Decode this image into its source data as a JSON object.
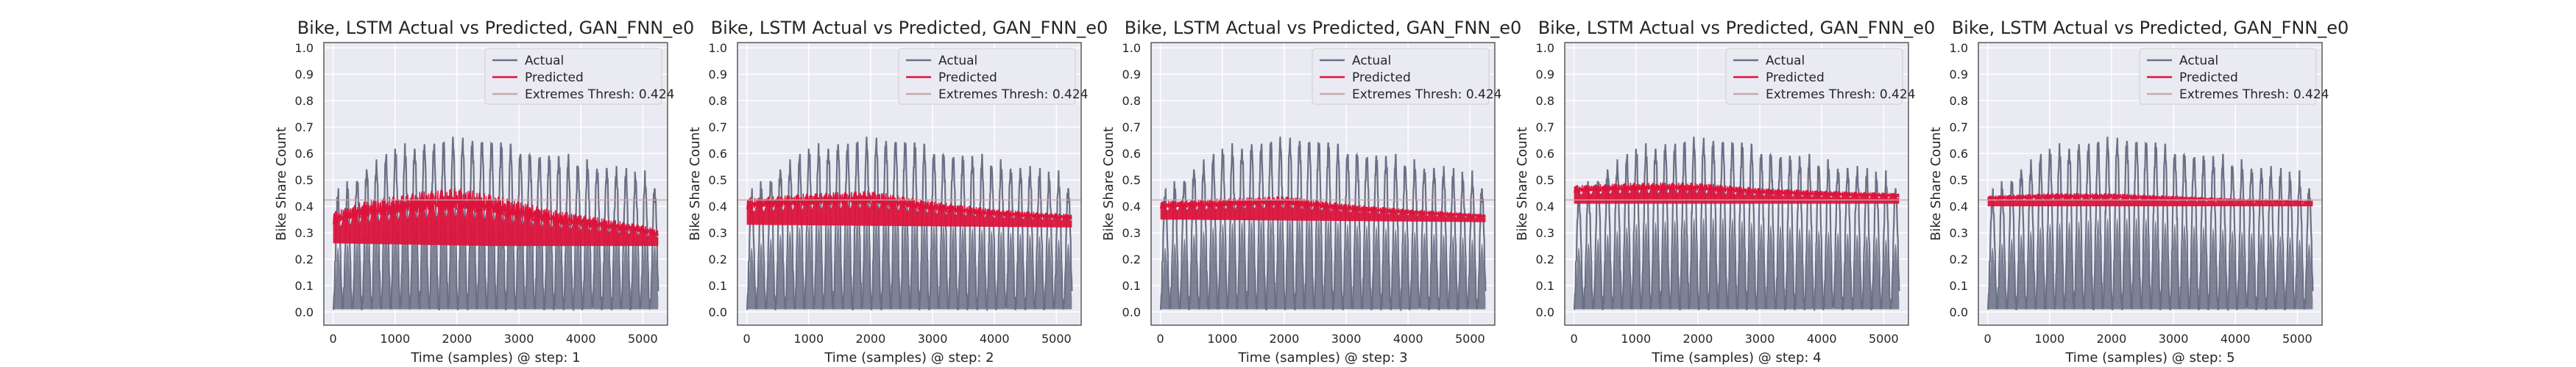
{
  "chart_data": [
    {
      "type": "line",
      "title": "Bike, LSTM Actual vs Predicted, GAN_FNN_e0",
      "xlabel": "Time (samples) @ step: 1",
      "ylabel": "Bike Share Count",
      "xlim": [
        -150,
        5400
      ],
      "ylim": [
        -0.05,
        1.02
      ],
      "xticks": [
        0,
        1000,
        2000,
        3000,
        4000,
        5000
      ],
      "yticks": [
        0.0,
        0.1,
        0.2,
        0.3,
        0.4,
        0.5,
        0.6,
        0.7,
        0.8,
        0.9,
        1.0
      ],
      "grid": true,
      "legend": "top-right",
      "series": [
        {
          "name": "Actual",
          "color": "#6b7085",
          "kind": "band",
          "x_range": [
            0,
            5250
          ],
          "low": 0.01,
          "peak_env": [
            [
              0,
              0.42
            ],
            [
              500,
              0.52
            ],
            [
              1000,
              0.6
            ],
            [
              1500,
              0.62
            ],
            [
              2000,
              0.64
            ],
            [
              2500,
              0.64
            ],
            [
              3000,
              0.6
            ],
            [
              3500,
              0.58
            ],
            [
              4000,
              0.55
            ],
            [
              4500,
              0.53
            ],
            [
              5000,
              0.5
            ],
            [
              5250,
              0.45
            ]
          ]
        },
        {
          "name": "Predicted",
          "color": "#dc143c",
          "kind": "band",
          "x_range": [
            0,
            5250
          ],
          "low_env": [
            [
              0,
              0.26
            ],
            [
              2500,
              0.25
            ],
            [
              5250,
              0.25
            ]
          ],
          "high_env": [
            [
              0,
              0.38
            ],
            [
              500,
              0.42
            ],
            [
              1000,
              0.44
            ],
            [
              1500,
              0.46
            ],
            [
              2000,
              0.47
            ],
            [
              2500,
              0.45
            ],
            [
              3000,
              0.42
            ],
            [
              3500,
              0.39
            ],
            [
              4000,
              0.37
            ],
            [
              4500,
              0.35
            ],
            [
              5000,
              0.33
            ],
            [
              5250,
              0.31
            ]
          ]
        },
        {
          "name": "Extremes Thresh: 0.424",
          "color": "#c7a8a8",
          "kind": "hline",
          "y": 0.424
        }
      ]
    },
    {
      "type": "line",
      "title": "Bike, LSTM Actual vs Predicted, GAN_FNN_e0",
      "xlabel": "Time (samples) @ step: 2",
      "ylabel": "Bike Share Count",
      "xlim": [
        -150,
        5400
      ],
      "ylim": [
        -0.05,
        1.02
      ],
      "xticks": [
        0,
        1000,
        2000,
        3000,
        4000,
        5000
      ],
      "yticks": [
        0.0,
        0.1,
        0.2,
        0.3,
        0.4,
        0.5,
        0.6,
        0.7,
        0.8,
        0.9,
        1.0
      ],
      "grid": true,
      "legend": "top-right",
      "series": [
        {
          "name": "Actual",
          "color": "#6b7085",
          "kind": "band",
          "x_range": [
            0,
            5250
          ],
          "low": 0.01,
          "peak_env": [
            [
              0,
              0.42
            ],
            [
              500,
              0.52
            ],
            [
              1000,
              0.6
            ],
            [
              1500,
              0.62
            ],
            [
              2000,
              0.64
            ],
            [
              2500,
              0.64
            ],
            [
              3000,
              0.6
            ],
            [
              3500,
              0.58
            ],
            [
              4000,
              0.55
            ],
            [
              4500,
              0.53
            ],
            [
              5000,
              0.5
            ],
            [
              5250,
              0.45
            ]
          ]
        },
        {
          "name": "Predicted",
          "color": "#dc143c",
          "kind": "band",
          "x_range": [
            0,
            5250
          ],
          "low_env": [
            [
              0,
              0.33
            ],
            [
              5250,
              0.32
            ]
          ],
          "high_env": [
            [
              0,
              0.43
            ],
            [
              1000,
              0.45
            ],
            [
              2000,
              0.46
            ],
            [
              3000,
              0.42
            ],
            [
              4000,
              0.39
            ],
            [
              5250,
              0.37
            ]
          ]
        },
        {
          "name": "Extremes Thresh: 0.424",
          "color": "#c7a8a8",
          "kind": "hline",
          "y": 0.424
        }
      ]
    },
    {
      "type": "line",
      "title": "Bike, LSTM Actual vs Predicted, GAN_FNN_e0",
      "xlabel": "Time (samples) @ step: 3",
      "ylabel": "Bike Share Count",
      "xlim": [
        -150,
        5400
      ],
      "ylim": [
        -0.05,
        1.02
      ],
      "xticks": [
        0,
        1000,
        2000,
        3000,
        4000,
        5000
      ],
      "yticks": [
        0.0,
        0.1,
        0.2,
        0.3,
        0.4,
        0.5,
        0.6,
        0.7,
        0.8,
        0.9,
        1.0
      ],
      "grid": true,
      "legend": "top-right",
      "series": [
        {
          "name": "Actual",
          "color": "#6b7085",
          "kind": "band",
          "x_range": [
            0,
            5250
          ],
          "low": 0.01,
          "peak_env": [
            [
              0,
              0.42
            ],
            [
              500,
              0.52
            ],
            [
              1000,
              0.6
            ],
            [
              1500,
              0.62
            ],
            [
              2000,
              0.64
            ],
            [
              2500,
              0.64
            ],
            [
              3000,
              0.6
            ],
            [
              3500,
              0.58
            ],
            [
              4000,
              0.55
            ],
            [
              4500,
              0.53
            ],
            [
              5000,
              0.5
            ],
            [
              5250,
              0.45
            ]
          ]
        },
        {
          "name": "Predicted",
          "color": "#dc143c",
          "kind": "band",
          "x_range": [
            0,
            5250
          ],
          "low_env": [
            [
              0,
              0.35
            ],
            [
              5250,
              0.34
            ]
          ],
          "high_env": [
            [
              0,
              0.42
            ],
            [
              1000,
              0.43
            ],
            [
              2000,
              0.44
            ],
            [
              3000,
              0.41
            ],
            [
              4000,
              0.39
            ],
            [
              5250,
              0.37
            ]
          ]
        },
        {
          "name": "Extremes Thresh: 0.424",
          "color": "#c7a8a8",
          "kind": "hline",
          "y": 0.424
        }
      ]
    },
    {
      "type": "line",
      "title": "Bike, LSTM Actual vs Predicted, GAN_FNN_e0",
      "xlabel": "Time (samples) @ step: 4",
      "ylabel": "Bike Share Count",
      "xlim": [
        -150,
        5400
      ],
      "ylim": [
        -0.05,
        1.02
      ],
      "xticks": [
        0,
        1000,
        2000,
        3000,
        4000,
        5000
      ],
      "yticks": [
        0.0,
        0.1,
        0.2,
        0.3,
        0.4,
        0.5,
        0.6,
        0.7,
        0.8,
        0.9,
        1.0
      ],
      "grid": true,
      "legend": "top-right",
      "series": [
        {
          "name": "Actual",
          "color": "#6b7085",
          "kind": "band",
          "x_range": [
            0,
            5250
          ],
          "low": 0.01,
          "peak_env": [
            [
              0,
              0.42
            ],
            [
              500,
              0.52
            ],
            [
              1000,
              0.6
            ],
            [
              1500,
              0.62
            ],
            [
              2000,
              0.64
            ],
            [
              2500,
              0.64
            ],
            [
              3000,
              0.6
            ],
            [
              3500,
              0.58
            ],
            [
              4000,
              0.55
            ],
            [
              4500,
              0.53
            ],
            [
              5000,
              0.5
            ],
            [
              5250,
              0.45
            ]
          ]
        },
        {
          "name": "Predicted",
          "color": "#dc143c",
          "kind": "band",
          "x_range": [
            0,
            5250
          ],
          "low_env": [
            [
              0,
              0.41
            ],
            [
              5250,
              0.41
            ]
          ],
          "high_env": [
            [
              0,
              0.48
            ],
            [
              1000,
              0.49
            ],
            [
              2000,
              0.49
            ],
            [
              3000,
              0.47
            ],
            [
              4000,
              0.46
            ],
            [
              5250,
              0.45
            ]
          ]
        },
        {
          "name": "Extremes Thresh: 0.424",
          "color": "#c7a8a8",
          "kind": "hline",
          "y": 0.424
        }
      ]
    },
    {
      "type": "line",
      "title": "Bike, LSTM Actual vs Predicted, GAN_FNN_e0",
      "xlabel": "Time (samples) @ step: 5",
      "ylabel": "Bike Share Count",
      "xlim": [
        -150,
        5400
      ],
      "ylim": [
        -0.05,
        1.02
      ],
      "xticks": [
        0,
        1000,
        2000,
        3000,
        4000,
        5000
      ],
      "yticks": [
        0.0,
        0.1,
        0.2,
        0.3,
        0.4,
        0.5,
        0.6,
        0.7,
        0.8,
        0.9,
        1.0
      ],
      "grid": true,
      "legend": "top-right",
      "series": [
        {
          "name": "Actual",
          "color": "#6b7085",
          "kind": "band",
          "x_range": [
            0,
            5250
          ],
          "low": 0.01,
          "peak_env": [
            [
              0,
              0.42
            ],
            [
              500,
              0.52
            ],
            [
              1000,
              0.6
            ],
            [
              1500,
              0.62
            ],
            [
              2000,
              0.64
            ],
            [
              2500,
              0.64
            ],
            [
              3000,
              0.6
            ],
            [
              3500,
              0.58
            ],
            [
              4000,
              0.55
            ],
            [
              4500,
              0.53
            ],
            [
              5000,
              0.5
            ],
            [
              5250,
              0.45
            ]
          ]
        },
        {
          "name": "Predicted",
          "color": "#dc143c",
          "kind": "band",
          "x_range": [
            0,
            5250
          ],
          "low_env": [
            [
              0,
              0.4
            ],
            [
              5250,
              0.4
            ]
          ],
          "high_env": [
            [
              0,
              0.44
            ],
            [
              1000,
              0.45
            ],
            [
              2000,
              0.45
            ],
            [
              3000,
              0.44
            ],
            [
              4000,
              0.43
            ],
            [
              5250,
              0.42
            ]
          ]
        },
        {
          "name": "Extremes Thresh: 0.424",
          "color": "#c7a8a8",
          "kind": "hline",
          "y": 0.424
        }
      ]
    }
  ]
}
